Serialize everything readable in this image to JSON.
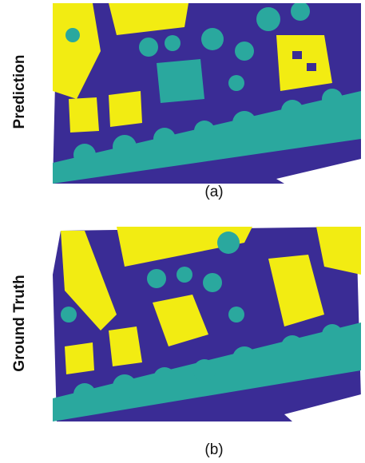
{
  "panels": [
    {
      "label": "Prediction",
      "caption": "(a)"
    },
    {
      "label": "Ground Truth",
      "caption": "(b)"
    }
  ]
}
